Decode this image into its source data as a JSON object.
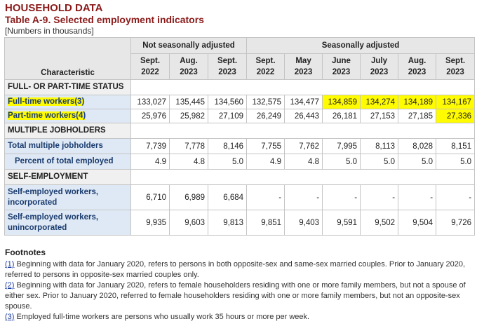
{
  "header": {
    "section": "HOUSEHOLD DATA",
    "table_title": "Table A-9. Selected employment indicators",
    "units": "[Numbers in thousands]"
  },
  "columns": {
    "characteristic": "Characteristic",
    "nsa_group": "Not seasonally adjusted",
    "sa_group": "Seasonally adjusted",
    "periods": [
      {
        "month": "Sept.",
        "year": "2022"
      },
      {
        "month": "Aug.",
        "year": "2023"
      },
      {
        "month": "Sept.",
        "year": "2023"
      },
      {
        "month": "Sept.",
        "year": "2022"
      },
      {
        "month": "May",
        "year": "2023"
      },
      {
        "month": "June",
        "year": "2023"
      },
      {
        "month": "July",
        "year": "2023"
      },
      {
        "month": "Aug.",
        "year": "2023"
      },
      {
        "month": "Sept.",
        "year": "2023"
      }
    ]
  },
  "sections": [
    {
      "title": "FULL- OR PART-TIME STATUS",
      "rows": [
        {
          "label": "Full-time workers",
          "note": "(3)",
          "values": [
            "133,027",
            "135,445",
            "134,560",
            "132,575",
            "134,477",
            "134,859",
            "134,274",
            "134,189",
            "134,167"
          ]
        },
        {
          "label": "Part-time workers",
          "note": "(4)",
          "values": [
            "25,976",
            "25,982",
            "27,109",
            "26,249",
            "26,443",
            "26,181",
            "27,153",
            "27,185",
            "27,336"
          ]
        }
      ]
    },
    {
      "title": "MULTIPLE JOBHOLDERS",
      "rows": [
        {
          "label": "Total multiple jobholders",
          "values": [
            "7,739",
            "7,778",
            "8,146",
            "7,755",
            "7,762",
            "7,995",
            "8,113",
            "8,028",
            "8,151"
          ]
        },
        {
          "label": "Percent of total employed",
          "values": [
            "4.9",
            "4.8",
            "5.0",
            "4.9",
            "4.8",
            "5.0",
            "5.0",
            "5.0",
            "5.0"
          ]
        }
      ]
    },
    {
      "title": "SELF-EMPLOYMENT",
      "rows": [
        {
          "label": "Self-employed workers, incorporated",
          "values": [
            "6,710",
            "6,989",
            "6,684",
            "-",
            "-",
            "-",
            "-",
            "-",
            "-"
          ]
        },
        {
          "label": "Self-employed workers, unincorporated",
          "values": [
            "9,935",
            "9,603",
            "9,813",
            "9,851",
            "9,403",
            "9,591",
            "9,502",
            "9,504",
            "9,726"
          ]
        }
      ]
    }
  ],
  "footnotes": {
    "title": "Footnotes",
    "items": [
      {
        "ref": "(1)",
        "text": " Beginning with data for January 2020, refers to persons in both opposite-sex and same-sex married couples. Prior to January 2020, referred to persons in opposite-sex married couples only."
      },
      {
        "ref": "(2)",
        "text": " Beginning with data for January 2020, refers to female householders residing with one or more family members, but not a spouse of either sex. Prior to January 2020, referred to female householders residing with one or more family members, but not an opposite-sex spouse."
      },
      {
        "ref": "(3)",
        "text": " Employed full-time workers are persons who usually work 35 hours or more per week."
      }
    ]
  },
  "colors": {
    "title": "#8b1a1a",
    "label_text": "#1a3b6e",
    "label_bg": "#dfe9f5",
    "header_bg": "#e7e7e7",
    "highlight": "#fffb00",
    "link": "#1a3b9e"
  }
}
